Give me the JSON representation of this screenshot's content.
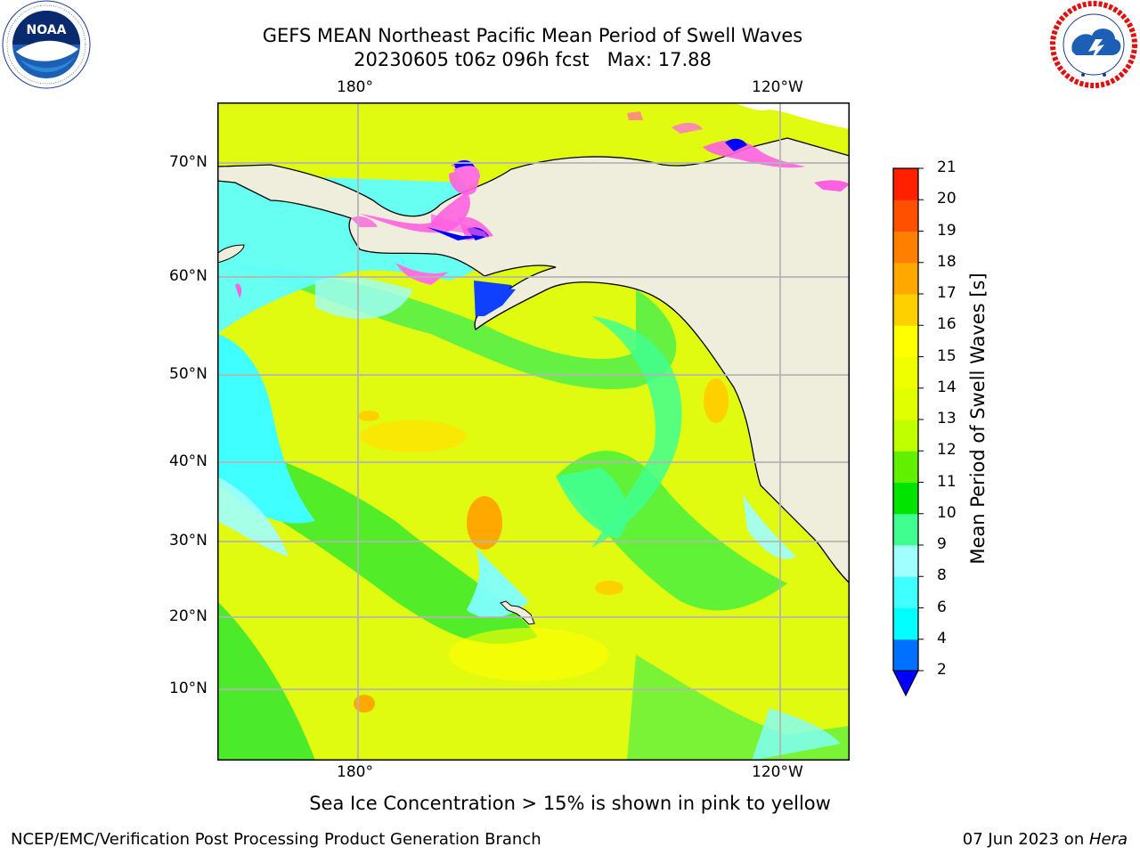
{
  "header": {
    "title_line1": "GEFS MEAN Northeast Pacific Mean Period of Swell Waves",
    "title_line2": "20230605 t06z 096h fcst   Max: 17.88"
  },
  "logos": {
    "left": {
      "icon": "noaa-logo-icon",
      "text": "NOAA",
      "ring_text": "NATIONAL OCEANIC AND ATMOSPHERIC ADMINISTRATION · U.S. DEPARTMENT OF COMMERCE"
    },
    "right": {
      "icon": "nws-logo-icon",
      "ring_text": "NATIONAL WEATHER SERVICE"
    }
  },
  "map": {
    "top_lon_labels": [
      "180°",
      "120°W"
    ],
    "bottom_lon_labels": [
      "180°",
      "120°W"
    ],
    "lat_labels": [
      "70°N",
      "60°N",
      "50°N",
      "40°N",
      "30°N",
      "20°N",
      "10°N"
    ],
    "land_color": "#efeedd",
    "grid_color": "#b4b4b4"
  },
  "colorbar": {
    "label": "Mean Period of Swell Waves [s]",
    "levels": [
      "2",
      "4",
      "6",
      "8",
      "9",
      "10",
      "11",
      "12",
      "13",
      "14",
      "15",
      "16",
      "17",
      "18",
      "19",
      "20",
      "21"
    ],
    "colors": [
      "#0070ff",
      "#00ffff",
      "#40ffff",
      "#a0ffff",
      "#40ff90",
      "#00e400",
      "#60f000",
      "#c0ff00",
      "#e0ff00",
      "#f0ff00",
      "#ffff00",
      "#ffd000",
      "#ffa800",
      "#ff8000",
      "#ff5000",
      "#ff2000"
    ],
    "extend_color": "#0000ff"
  },
  "caption": "Sea Ice Concentration > 15% is shown in pink to yellow",
  "footer": {
    "left": "NCEP/EMC/Verification Post Processing Product Generation Branch",
    "right_date": "07 Jun 2023 on ",
    "right_machine": "Hera"
  }
}
